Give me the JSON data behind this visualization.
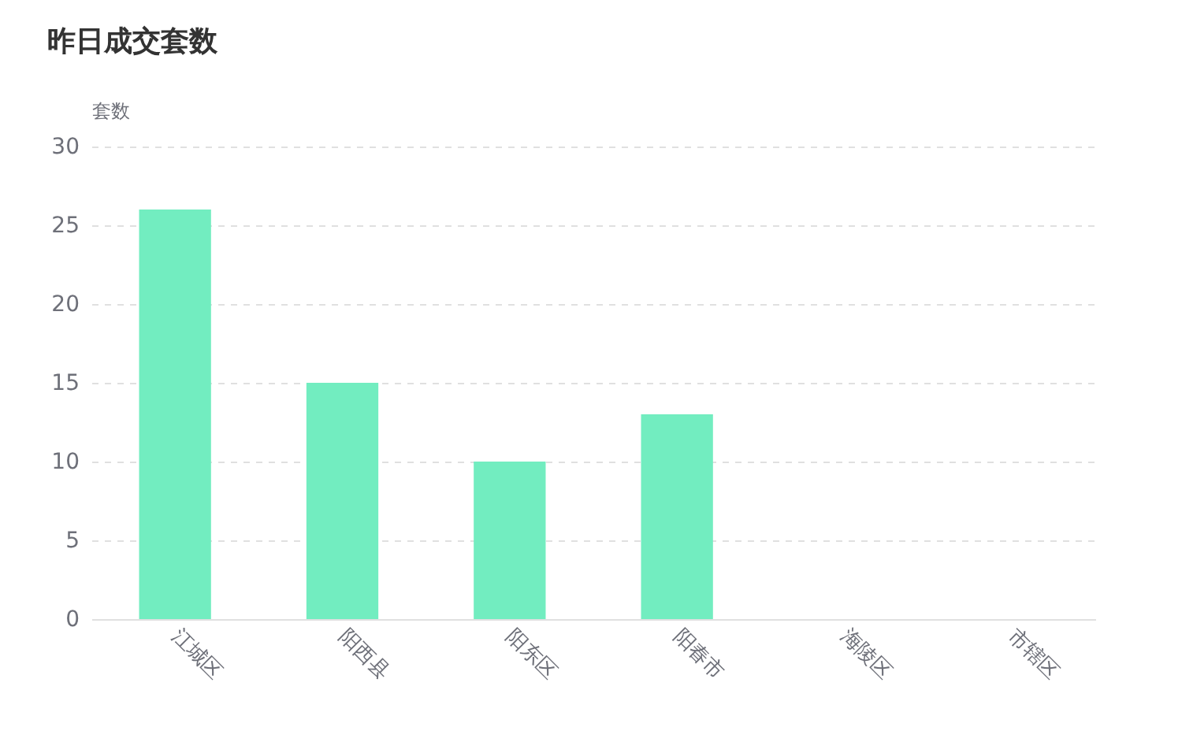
{
  "chart_data": {
    "type": "bar",
    "title": "昨日成交套数",
    "ylabel": "套数",
    "categories": [
      "江城区",
      "阳西县",
      "阳东区",
      "阳春市",
      "海陵区",
      "市辖区"
    ],
    "values": [
      26,
      15,
      10,
      13,
      0,
      0
    ],
    "color": "#72edc0",
    "ylim": [
      0,
      30
    ],
    "yticks": [
      0,
      5,
      10,
      15,
      20,
      25,
      30
    ],
    "grid": "y"
  }
}
